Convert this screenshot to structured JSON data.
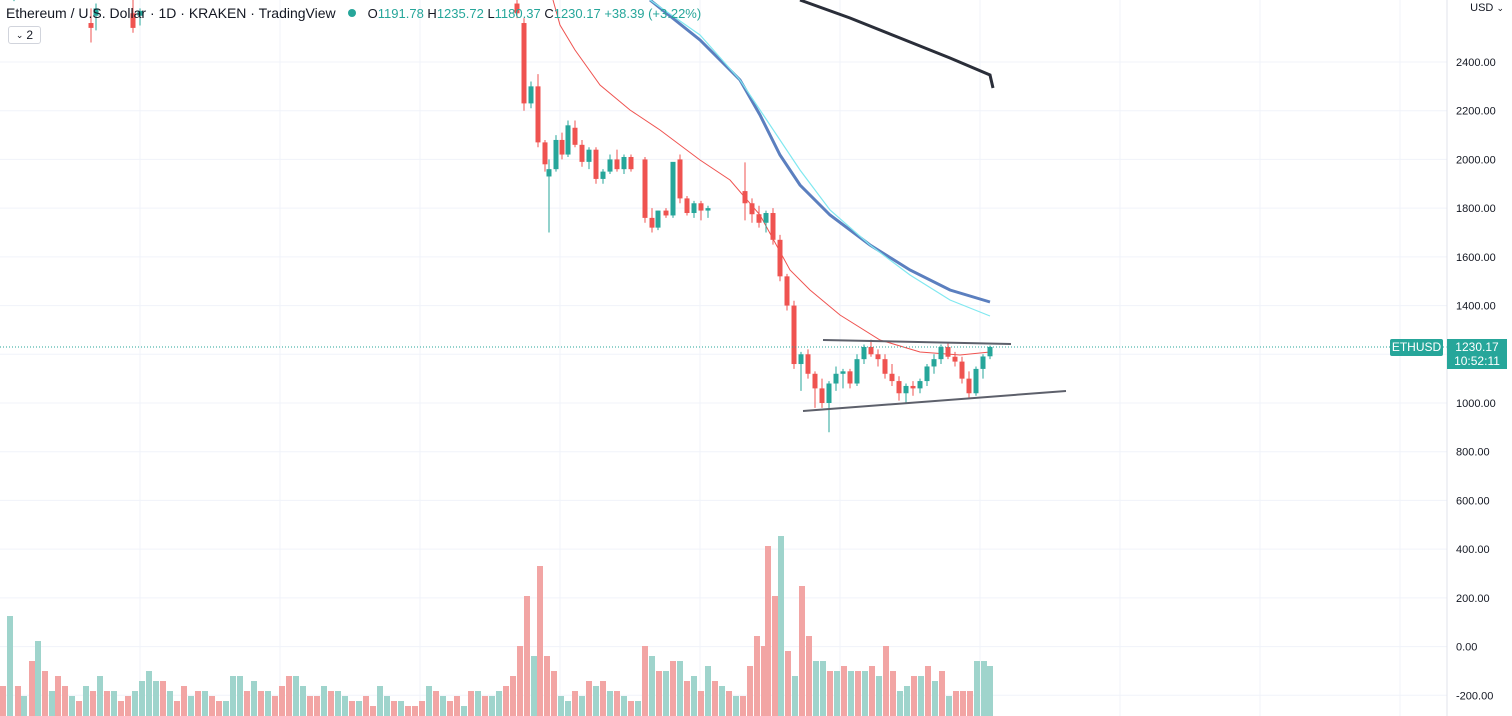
{
  "legend": {
    "title": "Ethereum / U.S. Dollar · 1D · KRAKEN · TradingView",
    "open_label": "O",
    "open": "1191.78",
    "high_label": "H",
    "high": "1235.72",
    "low_label": "L",
    "low": "1180.37",
    "close_label": "C",
    "close": "1230.17",
    "change": "+38.39 (+3.22%)"
  },
  "indicator_toggle": {
    "count": "2",
    "icon": "chevron-down-icon"
  },
  "currency": "USD",
  "last_price": {
    "symbol": "ETHUSD",
    "price": "1230.17",
    "countdown": "10:52:11"
  },
  "colors": {
    "up": "#26a69a",
    "down": "#ef5350",
    "vol_up": "#9fd4cc",
    "vol_down": "#f2a5a4",
    "ma_fast": "#ef5350",
    "ma_mid": "#5b7fbf",
    "ma_cyan": "#80e8f0",
    "ma_slow": "#2a2e39"
  },
  "chart_data": {
    "type": "candlestick",
    "y_axis": {
      "ticks": [
        "2400.00",
        "2200.00",
        "2000.00",
        "1800.00",
        "1600.00",
        "1400.00",
        "1200.00",
        "1000.00",
        "800.00",
        "600.00",
        "400.00",
        "200.00",
        "0.00",
        "-200.00"
      ]
    },
    "ylim": [
      -200,
      2600
    ],
    "candles_visible": [
      [
        1870,
        1988,
        1750,
        1820
      ],
      [
        1820,
        1840,
        1740,
        1775
      ],
      [
        1775,
        1810,
        1720,
        1740
      ],
      [
        1740,
        1790,
        1700,
        1780
      ],
      [
        1780,
        1800,
        1650,
        1670
      ],
      [
        1670,
        1690,
        1500,
        1520
      ],
      [
        1520,
        1530,
        1380,
        1400
      ],
      [
        1400,
        1420,
        1140,
        1160
      ],
      [
        1160,
        1210,
        1050,
        1200
      ],
      [
        1200,
        1220,
        1100,
        1120
      ],
      [
        1120,
        1130,
        980,
        1060
      ],
      [
        1060,
        1100,
        980,
        1000
      ],
      [
        1000,
        1090,
        880,
        1080
      ],
      [
        1080,
        1150,
        1050,
        1120
      ],
      [
        1120,
        1140,
        1060,
        1130
      ],
      [
        1130,
        1140,
        1060,
        1080
      ],
      [
        1080,
        1200,
        1070,
        1180
      ],
      [
        1180,
        1240,
        1160,
        1230
      ],
      [
        1230,
        1260,
        1190,
        1200
      ],
      [
        1200,
        1220,
        1150,
        1180
      ],
      [
        1180,
        1200,
        1100,
        1120
      ],
      [
        1120,
        1160,
        1070,
        1090
      ],
      [
        1090,
        1110,
        1010,
        1040
      ],
      [
        1040,
        1080,
        1000,
        1070
      ],
      [
        1070,
        1090,
        1030,
        1060
      ],
      [
        1060,
        1100,
        1040,
        1090
      ],
      [
        1090,
        1160,
        1070,
        1150
      ],
      [
        1150,
        1200,
        1120,
        1180
      ],
      [
        1180,
        1240,
        1160,
        1230
      ],
      [
        1230,
        1250,
        1180,
        1190
      ],
      [
        1190,
        1210,
        1150,
        1170
      ],
      [
        1170,
        1190,
        1080,
        1100
      ],
      [
        1100,
        1130,
        1020,
        1040
      ],
      [
        1040,
        1150,
        1030,
        1140
      ],
      [
        1140,
        1200,
        1100,
        1191
      ],
      [
        1191.78,
        1235.72,
        1180.37,
        1230.17
      ]
    ]
  }
}
